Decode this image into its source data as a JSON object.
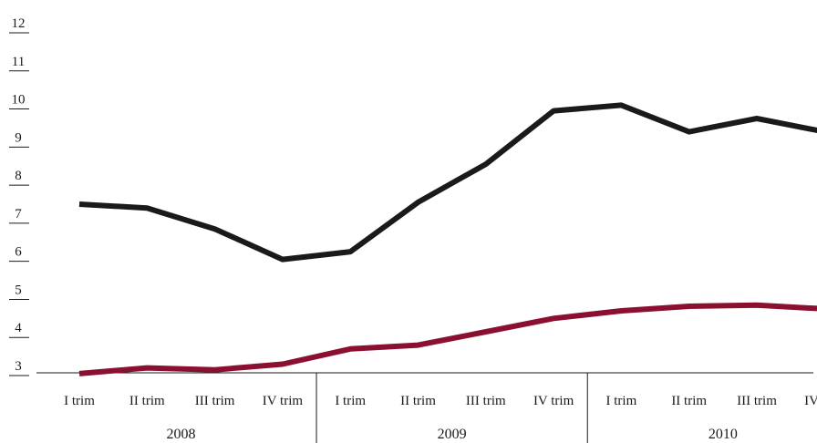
{
  "chart_data": {
    "type": "line",
    "categories": [
      "I trim",
      "II trim",
      "III trim",
      "IV trim",
      "I trim",
      "II trim",
      "III trim",
      "IV trim",
      "I trim",
      "II trim",
      "III trim",
      "IV trim"
    ],
    "groups": [
      {
        "label": "2008",
        "count": 4
      },
      {
        "label": "2009",
        "count": 4
      },
      {
        "label": "2010",
        "count": 4
      }
    ],
    "series": [
      {
        "color": "#1a1a1a",
        "values": [
          7.5,
          7.4,
          6.85,
          6.05,
          6.25,
          7.55,
          8.55,
          9.95,
          10.1,
          9.4,
          9.75,
          9.4
        ]
      },
      {
        "color": "#8b0f2e",
        "values": [
          3.05,
          3.2,
          3.15,
          3.3,
          3.7,
          3.8,
          4.15,
          4.5,
          4.7,
          4.82,
          4.85,
          4.75
        ]
      }
    ],
    "yticks": [
      "3",
      "4",
      "5",
      "6",
      "7",
      "8",
      "9",
      "10",
      "11",
      "12"
    ],
    "ylim": [
      3,
      12
    ],
    "title": "",
    "xlabel": "",
    "ylabel": ""
  }
}
